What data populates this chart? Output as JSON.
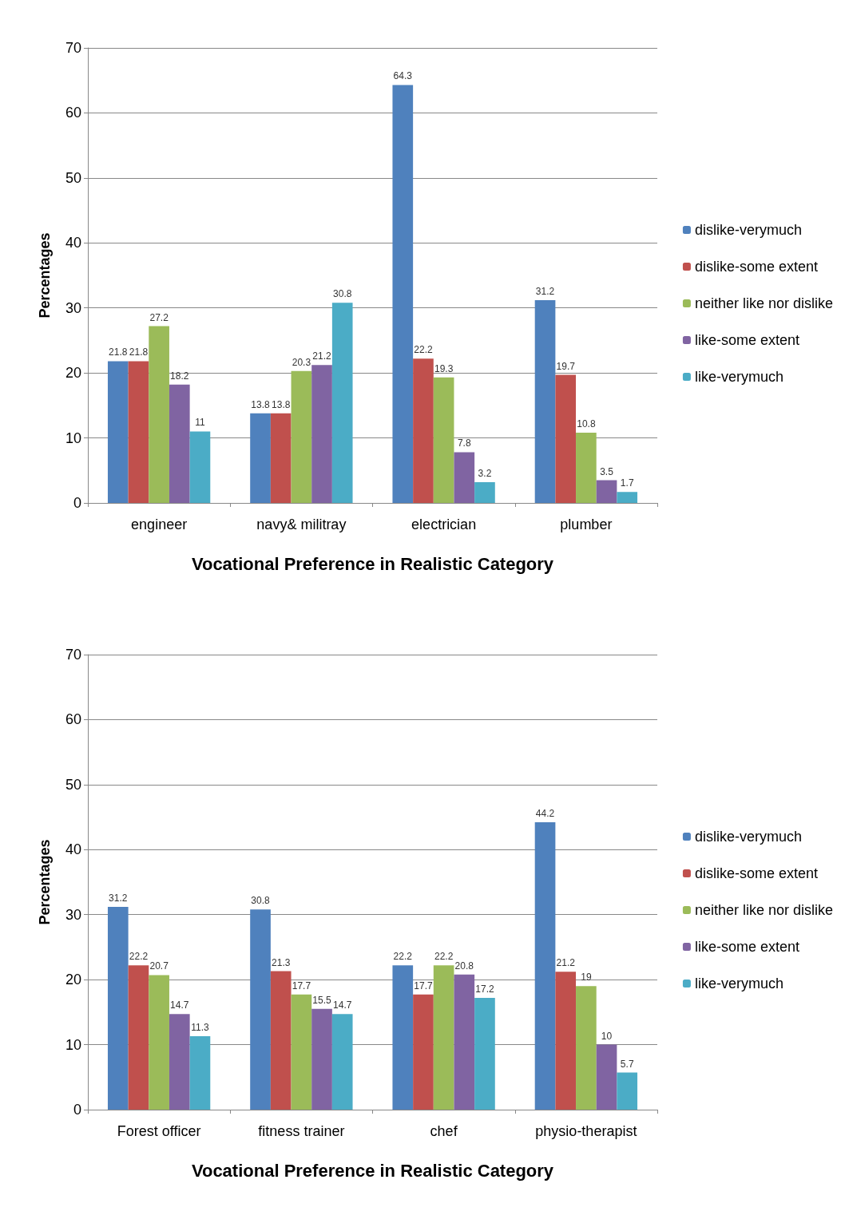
{
  "chart_data": [
    {
      "type": "bar",
      "xlabel": "Vocational Preference in Realistic Category",
      "ylabel": "Percentages",
      "categories": [
        "engineer",
        "navy& militray",
        "electrician",
        "plumber"
      ],
      "series": [
        {
          "name": "dislike-verymuch",
          "color": "#4f81bd",
          "values": [
            21.8,
            13.8,
            64.3,
            31.2
          ]
        },
        {
          "name": "dislike-some extent",
          "color": "#c0504d",
          "values": [
            21.8,
            13.8,
            22.2,
            19.7
          ]
        },
        {
          "name": "neither like nor dislike",
          "color": "#9bbb59",
          "values": [
            27.2,
            20.3,
            19.3,
            10.8
          ]
        },
        {
          "name": "like-some extent",
          "color": "#8064a2",
          "values": [
            18.2,
            21.2,
            7.8,
            3.5
          ]
        },
        {
          "name": "like-verymuch",
          "color": "#4bacc6",
          "values": [
            11,
            30.8,
            3.2,
            1.7
          ]
        }
      ],
      "ylim": [
        0,
        70
      ],
      "yticks": [
        0,
        10,
        20,
        30,
        40,
        50,
        60,
        70
      ],
      "grid": "y",
      "legend": "right",
      "data_labels": true
    },
    {
      "type": "bar",
      "xlabel": "Vocational Preference in Realistic Category",
      "ylabel": "Percentages",
      "categories": [
        "Forest officer",
        "fitness trainer",
        "chef",
        "physio-therapist"
      ],
      "series": [
        {
          "name": "dislike-verymuch",
          "color": "#4f81bd",
          "values": [
            31.2,
            30.8,
            22.2,
            44.2
          ]
        },
        {
          "name": "dislike-some extent",
          "color": "#c0504d",
          "values": [
            22.2,
            21.3,
            17.7,
            21.2
          ]
        },
        {
          "name": "neither like nor dislike",
          "color": "#9bbb59",
          "values": [
            20.7,
            17.7,
            22.2,
            19
          ]
        },
        {
          "name": "like-some extent",
          "color": "#8064a2",
          "values": [
            14.7,
            15.5,
            20.8,
            10
          ]
        },
        {
          "name": "like-verymuch",
          "color": "#4bacc6",
          "values": [
            11.3,
            14.7,
            17.2,
            5.7
          ]
        }
      ],
      "ylim": [
        0,
        70
      ],
      "yticks": [
        0,
        10,
        20,
        30,
        40,
        50,
        60,
        70
      ],
      "grid": "y",
      "legend": "right",
      "data_labels": true
    }
  ]
}
